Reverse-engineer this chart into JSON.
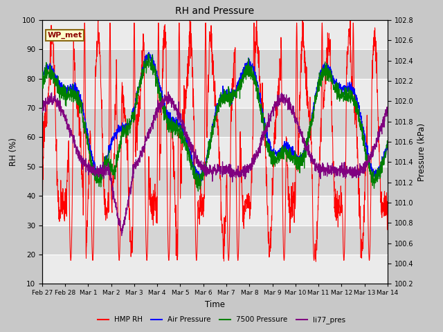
{
  "title": "RH and Pressure",
  "xlabel": "Time",
  "ylabel_left": "RH (%)",
  "ylabel_right": "Pressure (kPa)",
  "ylim_left": [
    10,
    100
  ],
  "ylim_right": [
    100.2,
    102.8
  ],
  "fig_bg_color": "#c8c8c8",
  "plot_bg_color": "#e0e0e0",
  "band_light": "#ebebeb",
  "band_dark": "#d5d5d5",
  "legend_labels": [
    "HMP RH",
    "Air Pressure",
    "7500 Pressure",
    "li77_pres"
  ],
  "legend_colors": [
    "red",
    "blue",
    "green",
    "purple"
  ],
  "wp_met_label": "WP_met",
  "wp_met_bg": "#ffffcc",
  "wp_met_border": "#8B6914",
  "wp_met_text_color": "#8B0000",
  "x_tick_labels": [
    "Feb 27",
    "Feb 28",
    "Mar 1",
    "Mar 2",
    "Mar 3",
    "Mar 4",
    "Mar 5",
    "Mar 6",
    "Mar 7",
    "Mar 8",
    "Mar 9",
    "Mar 10",
    "Mar 11",
    "Mar 12",
    "Mar 13",
    "Mar 14"
  ],
  "n_points": 2000
}
